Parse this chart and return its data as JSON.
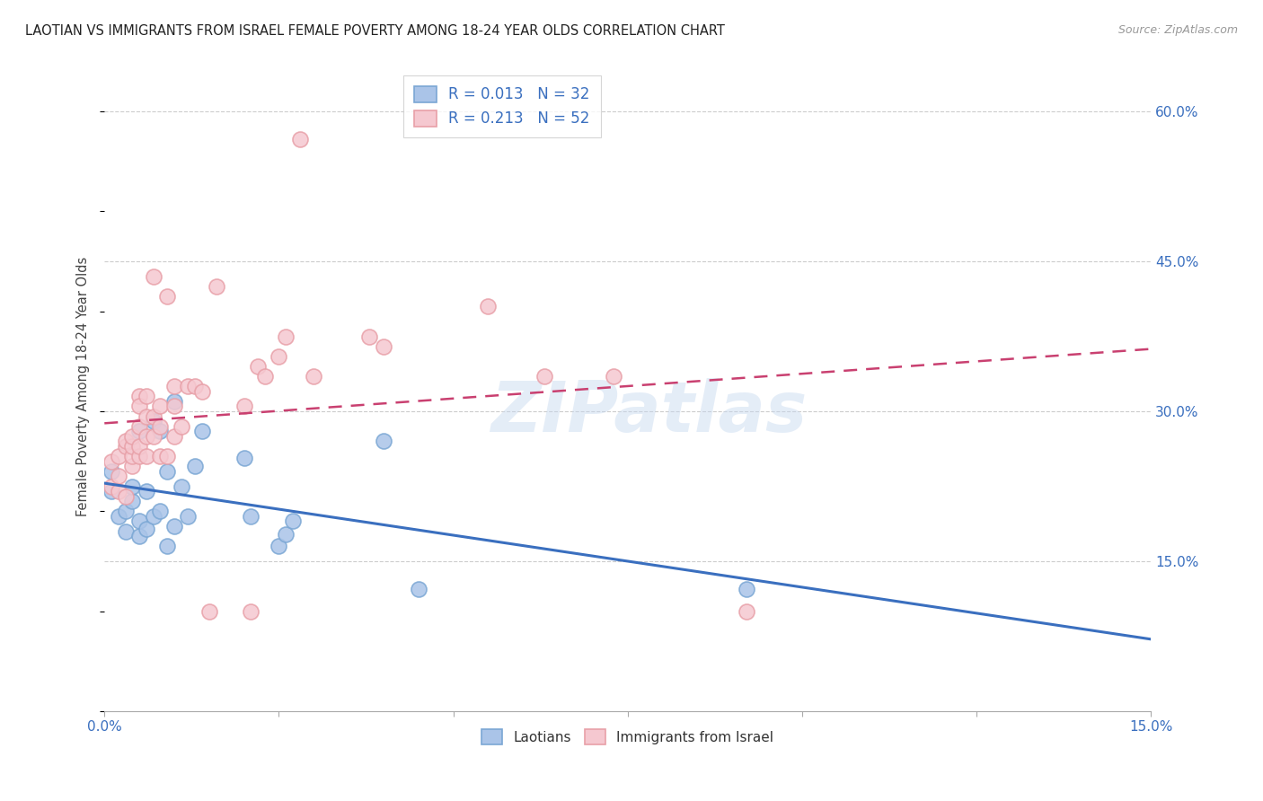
{
  "title": "LAOTIAN VS IMMIGRANTS FROM ISRAEL FEMALE POVERTY AMONG 18-24 YEAR OLDS CORRELATION CHART",
  "source": "Source: ZipAtlas.com",
  "ylabel": "Female Poverty Among 18-24 Year Olds",
  "xlim": [
    0.0,
    0.15
  ],
  "ylim": [
    0.0,
    0.65
  ],
  "xtick_positions": [
    0.0,
    0.025,
    0.05,
    0.075,
    0.1,
    0.125,
    0.15
  ],
  "yticks_right": [
    0.15,
    0.3,
    0.45,
    0.6
  ],
  "ytick_right_labels": [
    "15.0%",
    "30.0%",
    "45.0%",
    "60.0%"
  ],
  "blue_color": "#7ba7d4",
  "pink_color": "#e8a0a8",
  "blue_fill": "#aac4e8",
  "pink_fill": "#f5c8d0",
  "legend_r1": "R = 0.013   N = 32",
  "legend_r2": "R = 0.213   N = 52",
  "watermark": "ZIPatlas",
  "blue_line_color": "#3a6fbf",
  "pink_line_color": "#c94070",
  "blue_scatter_x": [
    0.001,
    0.001,
    0.002,
    0.003,
    0.003,
    0.004,
    0.004,
    0.005,
    0.005,
    0.005,
    0.006,
    0.006,
    0.007,
    0.007,
    0.008,
    0.008,
    0.009,
    0.009,
    0.01,
    0.01,
    0.011,
    0.012,
    0.013,
    0.014,
    0.02,
    0.021,
    0.025,
    0.026,
    0.027,
    0.04,
    0.045,
    0.092
  ],
  "blue_scatter_y": [
    0.22,
    0.24,
    0.195,
    0.2,
    0.18,
    0.21,
    0.225,
    0.175,
    0.19,
    0.28,
    0.182,
    0.22,
    0.29,
    0.195,
    0.2,
    0.28,
    0.165,
    0.24,
    0.31,
    0.185,
    0.225,
    0.195,
    0.245,
    0.28,
    0.253,
    0.195,
    0.165,
    0.177,
    0.19,
    0.27,
    0.122,
    0.122
  ],
  "pink_scatter_x": [
    0.001,
    0.001,
    0.002,
    0.002,
    0.002,
    0.003,
    0.003,
    0.003,
    0.004,
    0.004,
    0.004,
    0.004,
    0.005,
    0.005,
    0.005,
    0.005,
    0.005,
    0.006,
    0.006,
    0.006,
    0.006,
    0.007,
    0.007,
    0.007,
    0.008,
    0.008,
    0.008,
    0.009,
    0.009,
    0.01,
    0.01,
    0.01,
    0.011,
    0.012,
    0.013,
    0.014,
    0.015,
    0.016,
    0.02,
    0.021,
    0.022,
    0.023,
    0.025,
    0.026,
    0.028,
    0.03,
    0.038,
    0.04,
    0.055,
    0.063,
    0.073,
    0.092
  ],
  "pink_scatter_y": [
    0.225,
    0.25,
    0.22,
    0.235,
    0.255,
    0.265,
    0.27,
    0.215,
    0.245,
    0.255,
    0.265,
    0.275,
    0.315,
    0.255,
    0.265,
    0.285,
    0.305,
    0.255,
    0.275,
    0.295,
    0.315,
    0.275,
    0.295,
    0.435,
    0.255,
    0.285,
    0.305,
    0.255,
    0.415,
    0.275,
    0.305,
    0.325,
    0.285,
    0.325,
    0.325,
    0.32,
    0.1,
    0.425,
    0.305,
    0.1,
    0.345,
    0.335,
    0.355,
    0.375,
    0.572,
    0.335,
    0.375,
    0.365,
    0.405,
    0.335,
    0.335,
    0.1
  ]
}
